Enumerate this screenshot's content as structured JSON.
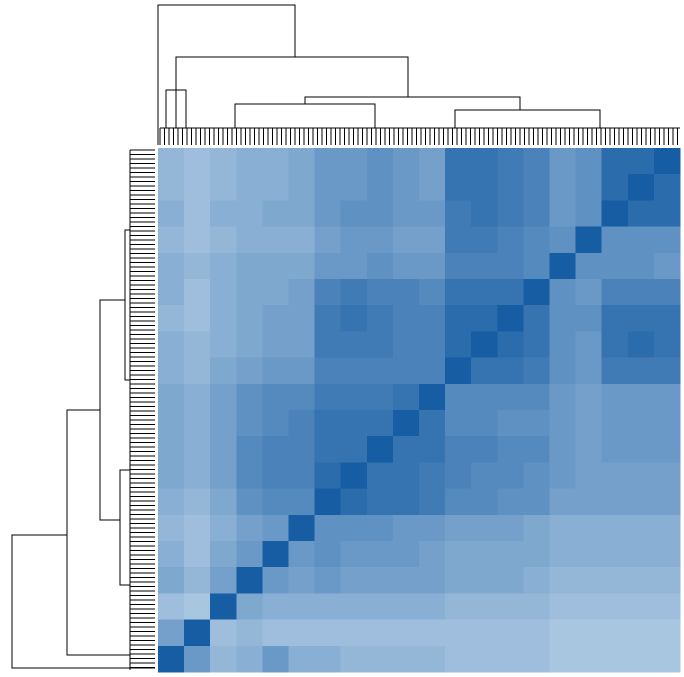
{
  "chart_data": {
    "type": "heatmap",
    "vlim": [
      0,
      1
    ],
    "colors": [
      "#deebf7",
      "#0b559f"
    ],
    "values": [
      [
        0.35,
        0.3,
        0.35,
        0.4,
        0.4,
        0.45,
        0.55,
        0.55,
        0.6,
        0.55,
        0.5,
        0.8,
        0.8,
        0.75,
        0.7,
        0.55,
        0.6,
        0.85,
        0.85,
        0.95
      ],
      [
        0.35,
        0.3,
        0.35,
        0.4,
        0.4,
        0.45,
        0.55,
        0.55,
        0.6,
        0.55,
        0.5,
        0.8,
        0.8,
        0.75,
        0.7,
        0.55,
        0.6,
        0.85,
        0.95,
        0.85
      ],
      [
        0.4,
        0.3,
        0.4,
        0.4,
        0.45,
        0.45,
        0.55,
        0.6,
        0.6,
        0.55,
        0.55,
        0.75,
        0.8,
        0.75,
        0.7,
        0.55,
        0.6,
        0.95,
        0.85,
        0.85
      ],
      [
        0.35,
        0.3,
        0.35,
        0.4,
        0.4,
        0.4,
        0.5,
        0.55,
        0.55,
        0.5,
        0.5,
        0.75,
        0.75,
        0.7,
        0.65,
        0.6,
        0.95,
        0.6,
        0.6,
        0.6
      ],
      [
        0.4,
        0.35,
        0.4,
        0.45,
        0.45,
        0.45,
        0.55,
        0.55,
        0.6,
        0.55,
        0.55,
        0.7,
        0.7,
        0.7,
        0.65,
        0.95,
        0.6,
        0.6,
        0.6,
        0.55
      ],
      [
        0.4,
        0.3,
        0.4,
        0.45,
        0.45,
        0.5,
        0.7,
        0.75,
        0.7,
        0.7,
        0.65,
        0.8,
        0.8,
        0.8,
        0.95,
        0.6,
        0.55,
        0.7,
        0.7,
        0.7
      ],
      [
        0.35,
        0.3,
        0.4,
        0.45,
        0.5,
        0.5,
        0.75,
        0.8,
        0.75,
        0.7,
        0.7,
        0.85,
        0.85,
        0.95,
        0.8,
        0.6,
        0.6,
        0.8,
        0.8,
        0.8
      ],
      [
        0.4,
        0.35,
        0.4,
        0.45,
        0.5,
        0.5,
        0.75,
        0.75,
        0.75,
        0.7,
        0.7,
        0.85,
        0.95,
        0.85,
        0.8,
        0.6,
        0.55,
        0.8,
        0.85,
        0.8
      ],
      [
        0.4,
        0.35,
        0.45,
        0.5,
        0.55,
        0.55,
        0.7,
        0.7,
        0.7,
        0.7,
        0.7,
        0.95,
        0.8,
        0.8,
        0.75,
        0.6,
        0.55,
        0.75,
        0.75,
        0.75
      ],
      [
        0.45,
        0.4,
        0.5,
        0.6,
        0.65,
        0.65,
        0.75,
        0.75,
        0.75,
        0.8,
        0.95,
        0.65,
        0.65,
        0.65,
        0.65,
        0.55,
        0.5,
        0.55,
        0.55,
        0.55
      ],
      [
        0.45,
        0.4,
        0.5,
        0.6,
        0.65,
        0.7,
        0.8,
        0.8,
        0.8,
        0.95,
        0.8,
        0.65,
        0.65,
        0.6,
        0.6,
        0.55,
        0.5,
        0.55,
        0.55,
        0.55
      ],
      [
        0.45,
        0.4,
        0.5,
        0.65,
        0.7,
        0.7,
        0.8,
        0.8,
        0.95,
        0.8,
        0.8,
        0.7,
        0.7,
        0.65,
        0.65,
        0.55,
        0.5,
        0.55,
        0.55,
        0.55
      ],
      [
        0.45,
        0.4,
        0.5,
        0.65,
        0.7,
        0.7,
        0.85,
        0.95,
        0.8,
        0.8,
        0.75,
        0.7,
        0.65,
        0.65,
        0.6,
        0.55,
        0.5,
        0.5,
        0.5,
        0.5
      ],
      [
        0.4,
        0.35,
        0.45,
        0.6,
        0.65,
        0.65,
        0.95,
        0.85,
        0.8,
        0.8,
        0.75,
        0.65,
        0.65,
        0.6,
        0.6,
        0.5,
        0.5,
        0.5,
        0.5,
        0.5
      ],
      [
        0.35,
        0.3,
        0.4,
        0.5,
        0.55,
        0.95,
        0.6,
        0.6,
        0.6,
        0.55,
        0.55,
        0.5,
        0.5,
        0.5,
        0.45,
        0.4,
        0.4,
        0.4,
        0.4,
        0.4
      ],
      [
        0.4,
        0.3,
        0.45,
        0.55,
        0.95,
        0.55,
        0.6,
        0.55,
        0.55,
        0.55,
        0.5,
        0.45,
        0.45,
        0.45,
        0.45,
        0.4,
        0.4,
        0.4,
        0.4,
        0.4
      ],
      [
        0.45,
        0.35,
        0.5,
        0.95,
        0.55,
        0.5,
        0.55,
        0.5,
        0.5,
        0.5,
        0.5,
        0.45,
        0.45,
        0.45,
        0.4,
        0.35,
        0.35,
        0.35,
        0.35,
        0.35
      ],
      [
        0.3,
        0.25,
        0.95,
        0.45,
        0.4,
        0.4,
        0.4,
        0.4,
        0.4,
        0.4,
        0.4,
        0.35,
        0.35,
        0.35,
        0.35,
        0.3,
        0.3,
        0.3,
        0.3,
        0.3
      ],
      [
        0.5,
        0.95,
        0.3,
        0.35,
        0.3,
        0.3,
        0.3,
        0.3,
        0.3,
        0.3,
        0.3,
        0.3,
        0.3,
        0.3,
        0.3,
        0.25,
        0.25,
        0.25,
        0.25,
        0.25
      ],
      [
        0.95,
        0.55,
        0.35,
        0.4,
        0.55,
        0.4,
        0.4,
        0.35,
        0.35,
        0.35,
        0.35,
        0.3,
        0.3,
        0.3,
        0.3,
        0.25,
        0.25,
        0.25,
        0.25,
        0.25
      ]
    ]
  }
}
